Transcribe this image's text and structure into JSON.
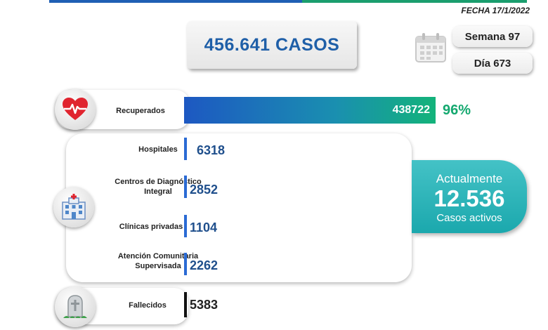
{
  "header": {
    "fecha": "FECHA 17/1/2022",
    "casos": "456.641 CASOS",
    "semana": "Semana 97",
    "dia": "Día 673"
  },
  "recuperados": {
    "label": "Recuperados",
    "value": "438722",
    "percent": "96%"
  },
  "hospitalizados": [
    {
      "label": "Hospitales",
      "value": "6318"
    },
    {
      "label": "Centros de Diagnóstico Integral",
      "value": "2852"
    },
    {
      "label": "Clínicas privadas",
      "value": "1104"
    },
    {
      "label": "Atención Comunitaria Supervisada",
      "value": "2262"
    }
  ],
  "activos": {
    "title": "Actualmente",
    "value": "12.536",
    "subtitle": "Casos activos"
  },
  "fallecidos": {
    "label": "Fallecidos",
    "value": "5383"
  },
  "colors": {
    "blue": "#1f5fa8",
    "green": "#14a86f",
    "teal": "#1ba8ad"
  },
  "icons": [
    "heart-pulse-icon",
    "hospital-icon",
    "tombstone-icon",
    "calendar-icon"
  ]
}
